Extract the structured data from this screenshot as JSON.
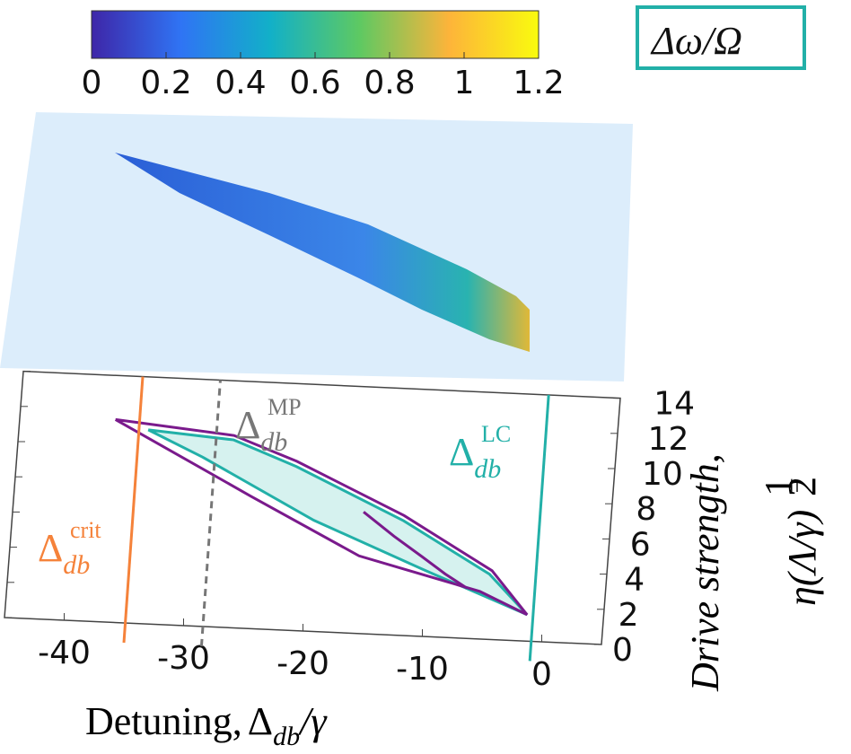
{
  "chart_data": {
    "type": "region3d",
    "colorbar": {
      "clim": [
        0,
        1.2
      ],
      "ticks": [
        0,
        0.2,
        0.4,
        0.6,
        0.8,
        1,
        1.2
      ],
      "colormap": [
        "#3e26a8",
        "#2f74f4",
        "#12b0c8",
        "#5ec962",
        "#fdb43a",
        "#f9fb0e"
      ],
      "label": {
        "base": "Δω/Ω"
      }
    },
    "xlabel": {
      "text": "Detuning,",
      "base": "Δ",
      "sub": "db",
      "rest": "/γ"
    },
    "ylabel": {
      "text": "Drive strength,",
      "base": "η(Λ/γ)",
      "num": "1",
      "den": "2"
    },
    "xlim": [
      -45,
      5
    ],
    "ylim": [
      0,
      14
    ],
    "xticks": [
      -40,
      -30,
      -20,
      -10,
      0
    ],
    "yticks": [
      0,
      2,
      4,
      6,
      8,
      10,
      12,
      14
    ],
    "vlines": [
      {
        "x": -35,
        "color": "#f5823a",
        "dashed": false,
        "label": {
          "base": "Δ",
          "sub": "db",
          "sup": "crit"
        }
      },
      {
        "x": -28.5,
        "color": "#777777",
        "dashed": true,
        "label": {
          "base": "Δ",
          "sub": "db",
          "sup": "MP"
        }
      },
      {
        "x": -1,
        "color": "#22b0a8",
        "dashed": false,
        "label": {
          "base": "Δ",
          "sub": "db",
          "sup": "LC"
        }
      }
    ],
    "series": [
      {
        "color": "#22b0a8",
        "fill": "#d6f2ef",
        "x": [
          -34.2,
          -27,
          -21.6,
          -12.3,
          -4.8,
          -1.4,
          -10.4,
          -19.8,
          -29.5,
          -34.2
        ],
        "y": [
          11.0,
          10.65,
          9.3,
          6.5,
          3.7,
          1.5,
          3.8,
          6.3,
          9.6,
          11.0
        ]
      },
      {
        "color": "#7a1a8c",
        "x": [
          -37,
          -27,
          -21.6,
          -12.3,
          -4.6,
          -1.4,
          -5.5,
          -15.8,
          -25.2,
          -37
        ],
        "y": [
          11.5,
          10.9,
          9.6,
          6.8,
          3.9,
          1.5,
          2.7,
          4.4,
          7.5,
          11.5
        ]
      },
      {
        "color": "#7a1a8c",
        "x": [
          -15.7,
          -13,
          -10.5,
          -8.5,
          -6.6
        ],
        "y": [
          6.9,
          5.6,
          4.5,
          3.6,
          2.85
        ]
      }
    ]
  }
}
